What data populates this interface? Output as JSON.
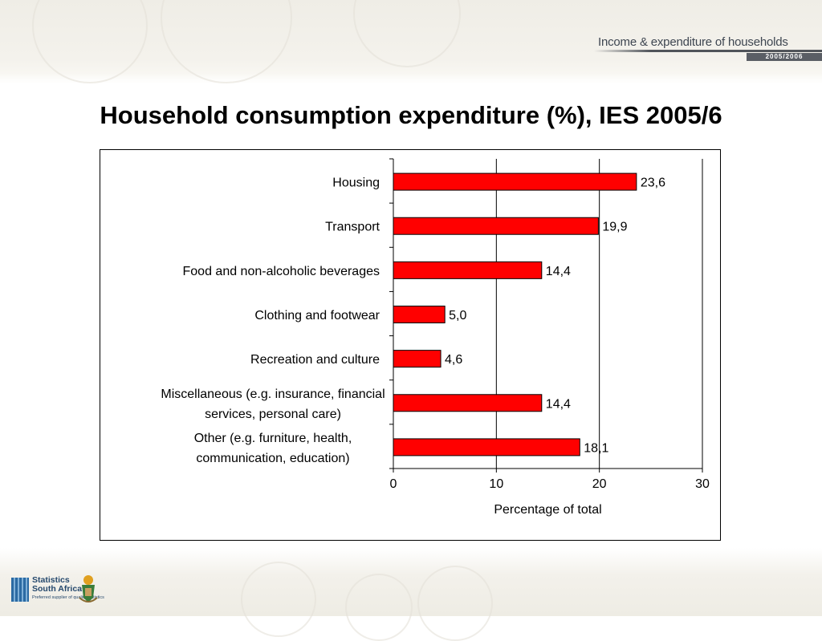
{
  "header": {
    "banner_text": "Income & expenditure of households",
    "banner_year": "2005/2006"
  },
  "slide": {
    "title": "Household consumption expenditure (%), IES 2005/6"
  },
  "logo": {
    "name_line1": "Statistics",
    "name_line2": "South Africa",
    "tagline": "Preferred supplier of quality statistics"
  },
  "colors": {
    "bar_fill": "#ff0000",
    "bar_stroke": "#000000",
    "gridline": "#000000"
  },
  "chart_data": {
    "type": "bar",
    "orientation": "horizontal",
    "title": "",
    "xlabel": "Percentage of total",
    "ylabel": "",
    "xlim": [
      0,
      30
    ],
    "xticks": [
      0,
      10,
      20,
      30
    ],
    "grid": "vertical gridlines at x-axis ticks",
    "legend": "none",
    "categories": [
      [
        "Housing"
      ],
      [
        "Transport"
      ],
      [
        "Food and non-alcoholic beverages"
      ],
      [
        "Clothing and footwear"
      ],
      [
        "Recreation and culture"
      ],
      [
        "Miscellaneous (e.g. insurance, financial",
        "services, personal care)"
      ],
      [
        "Other (e.g. furniture, health,",
        "communication, education)"
      ]
    ],
    "values": [
      23.6,
      19.9,
      14.4,
      5.0,
      4.6,
      14.4,
      18.1
    ],
    "value_labels": [
      "23,6",
      "19,9",
      "14,4",
      "5,0",
      "4,6",
      "14,4",
      "18,1"
    ]
  }
}
